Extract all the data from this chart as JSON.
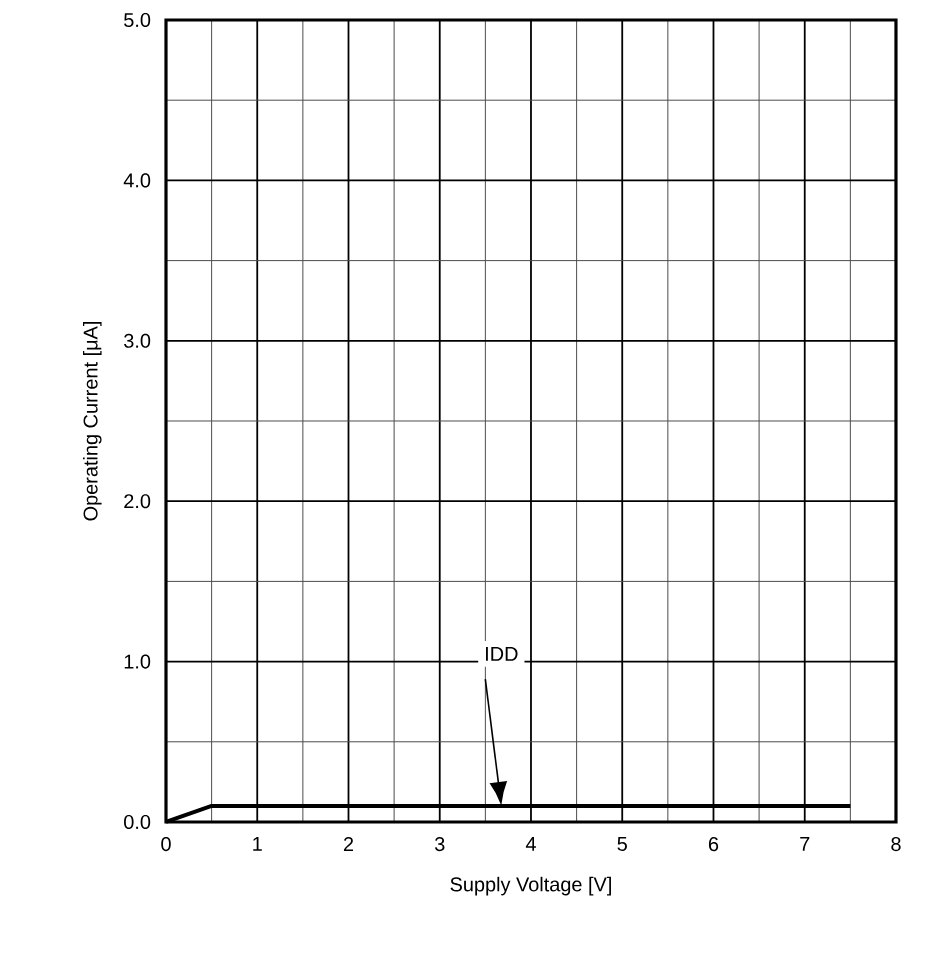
{
  "chart_data": {
    "type": "line",
    "xlabel": "Supply Voltage [V]",
    "ylabel": "Operating Current  [μA]",
    "xlim": [
      0,
      8
    ],
    "ylim": [
      0,
      5
    ],
    "xticks": [
      0,
      1,
      2,
      3,
      4,
      5,
      6,
      7,
      8
    ],
    "yticks": [
      {
        "value": 0,
        "label": "0.0"
      },
      {
        "value": 1,
        "label": "1.0"
      },
      {
        "value": 2,
        "label": "2.0"
      },
      {
        "value": 3,
        "label": "3.0"
      },
      {
        "value": 4,
        "label": "4.0"
      },
      {
        "value": 5,
        "label": "5.0"
      }
    ],
    "grid": true,
    "marker": "none",
    "line_style": "solid",
    "series": [
      {
        "name": "IDD",
        "color": "#000000",
        "x": [
          0,
          0.5,
          7.5
        ],
        "values": [
          0,
          0.1,
          0.1
        ]
      }
    ]
  }
}
